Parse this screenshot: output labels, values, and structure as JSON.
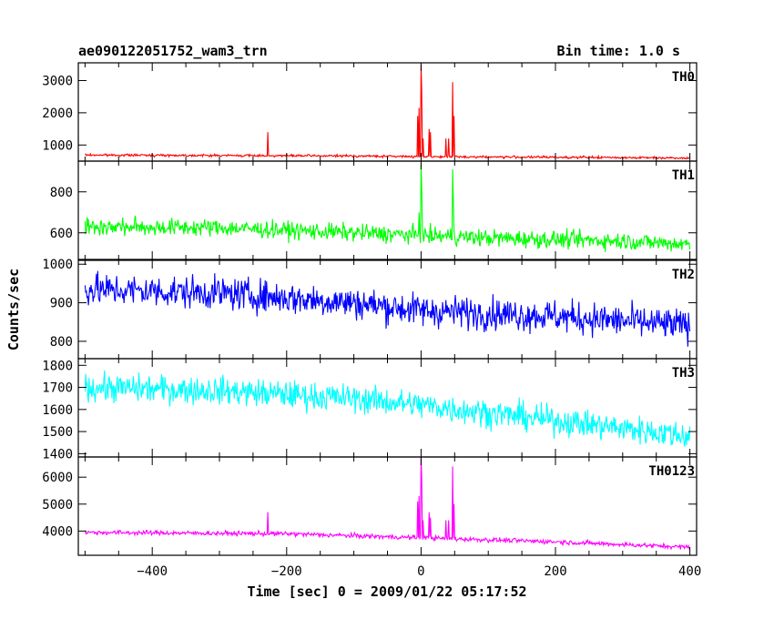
{
  "header": {
    "left_title": "ae090122051752_wam3_trn",
    "right_title": "Bin time: 1.0 s"
  },
  "chart_data": {
    "type": "line",
    "shared_x": {
      "label": "Time [sec] 0 = 2009/01/22 05:17:52",
      "range": [
        -510,
        410
      ],
      "ticks": [
        -400,
        -200,
        0,
        200,
        400
      ],
      "data_start": -500,
      "data_end": 400,
      "bin_s": 1.0
    },
    "ylabel": "Counts/sec",
    "panels": [
      {
        "name": "TH0",
        "color": "#ff0000",
        "ylim": [
          500,
          3550
        ],
        "yticks": [
          1000,
          2000,
          3000
        ],
        "baseline": [
          [
            -500,
            690
          ],
          [
            -100,
            660
          ],
          [
            0,
            640
          ],
          [
            200,
            620
          ],
          [
            400,
            600
          ]
        ],
        "noise": 25,
        "spikes": [
          [
            -228,
            1400
          ],
          [
            -5,
            1900
          ],
          [
            -3,
            2150
          ],
          [
            0,
            3500
          ],
          [
            1,
            2700
          ],
          [
            3,
            1200
          ],
          [
            12,
            1500
          ],
          [
            14,
            1400
          ],
          [
            37,
            1200
          ],
          [
            41,
            1200
          ],
          [
            47,
            2950
          ],
          [
            49,
            1900
          ]
        ]
      },
      {
        "name": "TH1",
        "color": "#00ff00",
        "ylim": [
          470,
          950
        ],
        "yticks": [
          600,
          800
        ],
        "baseline": [
          [
            -500,
            630
          ],
          [
            -300,
            625
          ],
          [
            -100,
            600
          ],
          [
            100,
            575
          ],
          [
            300,
            560
          ],
          [
            400,
            545
          ]
        ],
        "noise": 30,
        "spikes": [
          [
            -3,
            700
          ],
          [
            0,
            940
          ],
          [
            1,
            820
          ],
          [
            47,
            910
          ],
          [
            48,
            760
          ]
        ]
      },
      {
        "name": "TH2",
        "color": "#0000ff",
        "ylim": [
          755,
          1010
        ],
        "yticks": [
          800,
          900,
          1000
        ],
        "baseline": [
          [
            -500,
            935
          ],
          [
            -300,
            925
          ],
          [
            -100,
            900
          ],
          [
            0,
            880
          ],
          [
            200,
            865
          ],
          [
            400,
            840
          ]
        ],
        "noise": 30,
        "spikes": []
      },
      {
        "name": "TH3",
        "color": "#00ffff",
        "ylim": [
          1385,
          1830
        ],
        "yticks": [
          1400,
          1500,
          1600,
          1700,
          1800
        ],
        "baseline": [
          [
            -500,
            1700
          ],
          [
            -300,
            1685
          ],
          [
            -100,
            1650
          ],
          [
            0,
            1620
          ],
          [
            200,
            1550
          ],
          [
            400,
            1480
          ]
        ],
        "noise": 45,
        "spikes": []
      },
      {
        "name": "TH0123",
        "color": "#ff00ff",
        "ylim": [
          3100,
          6750
        ],
        "yticks": [
          4000,
          5000,
          6000
        ],
        "baseline": [
          [
            -500,
            3950
          ],
          [
            -200,
            3900
          ],
          [
            0,
            3750
          ],
          [
            200,
            3600
          ],
          [
            400,
            3400
          ]
        ],
        "noise": 60,
        "spikes": [
          [
            -228,
            4700
          ],
          [
            -5,
            5100
          ],
          [
            -3,
            5300
          ],
          [
            0,
            6800
          ],
          [
            1,
            6000
          ],
          [
            3,
            4400
          ],
          [
            12,
            4700
          ],
          [
            14,
            4500
          ],
          [
            37,
            4400
          ],
          [
            41,
            4400
          ],
          [
            47,
            6400
          ],
          [
            49,
            5000
          ]
        ]
      }
    ]
  }
}
